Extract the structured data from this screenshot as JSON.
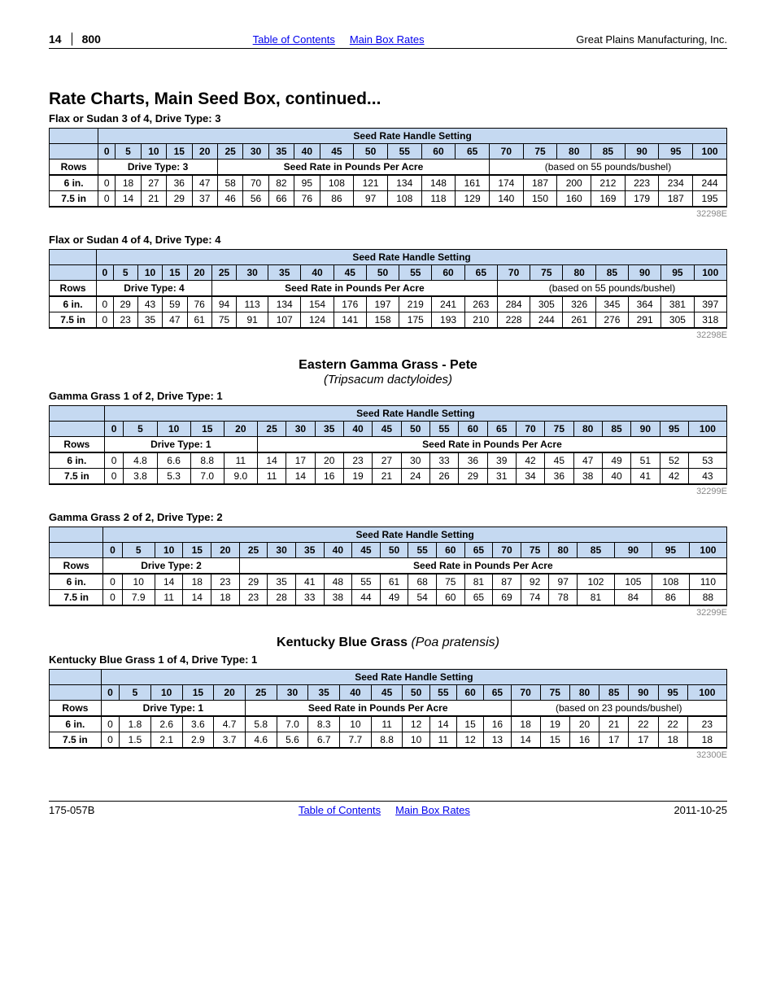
{
  "header": {
    "page": "14",
    "model": "800",
    "toc": "Table of Contents",
    "rates": "Main Box Rates",
    "company": "Great Plains Manufacturing, Inc."
  },
  "title": "Rate Charts, Main Seed Box, continued...",
  "settings": [
    "0",
    "5",
    "10",
    "15",
    "20",
    "25",
    "30",
    "35",
    "40",
    "45",
    "50",
    "55",
    "60",
    "65",
    "70",
    "75",
    "80",
    "85",
    "90",
    "95",
    "100"
  ],
  "handle_title": "Seed Rate Handle Setting",
  "rows_label": "Rows",
  "rate_label": "Seed Rate in Pounds Per Acre",
  "tables": [
    {
      "subtitle": "Flax or Sudan 3 of 4, Drive Type: 3",
      "drive": "Drive Type: 3",
      "note": "(based on 55 pounds/bushel)",
      "code": "32298E",
      "rows": [
        {
          "label": "6 in.",
          "vals": [
            "0",
            "18",
            "27",
            "36",
            "47",
            "58",
            "70",
            "82",
            "95",
            "108",
            "121",
            "134",
            "148",
            "161",
            "174",
            "187",
            "200",
            "212",
            "223",
            "234",
            "244"
          ]
        },
        {
          "label": "7.5 in",
          "vals": [
            "0",
            "14",
            "21",
            "29",
            "37",
            "46",
            "56",
            "66",
            "76",
            "86",
            "97",
            "108",
            "118",
            "129",
            "140",
            "150",
            "160",
            "169",
            "179",
            "187",
            "195"
          ]
        }
      ]
    },
    {
      "subtitle": "Flax or Sudan 4 of 4, Drive Type: 4",
      "drive": "Drive Type: 4",
      "note": "(based on 55 pounds/bushel)",
      "code": "32298E",
      "rows": [
        {
          "label": "6 in.",
          "vals": [
            "0",
            "29",
            "43",
            "59",
            "76",
            "94",
            "113",
            "134",
            "154",
            "176",
            "197",
            "219",
            "241",
            "263",
            "284",
            "305",
            "326",
            "345",
            "364",
            "381",
            "397"
          ]
        },
        {
          "label": "7.5 in",
          "vals": [
            "0",
            "23",
            "35",
            "47",
            "61",
            "75",
            "91",
            "107",
            "124",
            "141",
            "158",
            "175",
            "193",
            "210",
            "228",
            "244",
            "261",
            "276",
            "291",
            "305",
            "318"
          ]
        }
      ]
    },
    {
      "section": {
        "name": "Eastern Gamma Grass - Pete",
        "latin": "(Tripsacum dactyloides)"
      },
      "subtitle": "Gamma Grass 1 of 2, Drive Type: 1",
      "drive": "Drive Type: 1",
      "note": "",
      "code": "32299E",
      "rows": [
        {
          "label": "6 in.",
          "vals": [
            "0",
            "4.8",
            "6.6",
            "8.8",
            "11",
            "14",
            "17",
            "20",
            "23",
            "27",
            "30",
            "33",
            "36",
            "39",
            "42",
            "45",
            "47",
            "49",
            "51",
            "52",
            "53"
          ]
        },
        {
          "label": "7.5 in",
          "vals": [
            "0",
            "3.8",
            "5.3",
            "7.0",
            "9.0",
            "11",
            "14",
            "16",
            "19",
            "21",
            "24",
            "26",
            "29",
            "31",
            "34",
            "36",
            "38",
            "40",
            "41",
            "42",
            "43"
          ]
        }
      ]
    },
    {
      "subtitle": "Gamma Grass 2 of 2, Drive Type: 2",
      "drive": "Drive Type: 2",
      "note": "",
      "code": "32299E",
      "rows": [
        {
          "label": "6 in.",
          "vals": [
            "0",
            "10",
            "14",
            "18",
            "23",
            "29",
            "35",
            "41",
            "48",
            "55",
            "61",
            "68",
            "75",
            "81",
            "87",
            "92",
            "97",
            "102",
            "105",
            "108",
            "110"
          ]
        },
        {
          "label": "7.5 in",
          "vals": [
            "0",
            "7.9",
            "11",
            "14",
            "18",
            "23",
            "28",
            "33",
            "38",
            "44",
            "49",
            "54",
            "60",
            "65",
            "69",
            "74",
            "78",
            "81",
            "84",
            "86",
            "88"
          ]
        }
      ]
    },
    {
      "section_inline": {
        "name": "Kentucky Blue Grass",
        "latin": "(Poa pratensis)"
      },
      "subtitle": "Kentucky Blue Grass 1 of 4, Drive Type: 1",
      "drive": "Drive Type: 1",
      "note": "(based on 23 pounds/bushel)",
      "code": "32300E",
      "rows": [
        {
          "label": "6 in.",
          "vals": [
            "0",
            "1.8",
            "2.6",
            "3.6",
            "4.7",
            "5.8",
            "7.0",
            "8.3",
            "10",
            "11",
            "12",
            "14",
            "15",
            "16",
            "18",
            "19",
            "20",
            "21",
            "22",
            "22",
            "23"
          ]
        },
        {
          "label": "7.5 in",
          "vals": [
            "0",
            "1.5",
            "2.1",
            "2.9",
            "3.7",
            "4.6",
            "5.6",
            "6.7",
            "7.7",
            "8.8",
            "10",
            "11",
            "12",
            "13",
            "14",
            "15",
            "16",
            "17",
            "17",
            "18",
            "18"
          ]
        }
      ]
    }
  ],
  "footer": {
    "left": "175-057B",
    "toc": "Table of Contents",
    "rates": "Main Box Rates",
    "date": "2011-10-25"
  }
}
